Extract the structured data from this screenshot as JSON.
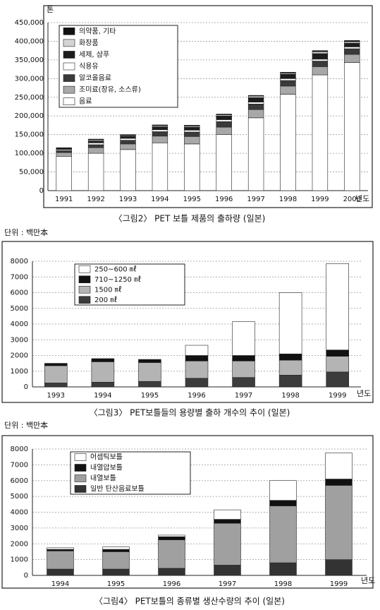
{
  "chart_data": [
    {
      "type": "bar",
      "stacked": true,
      "title": "〈그림2〉 PET 보틀 제품의 출하량 (일본)",
      "y_label": "톤",
      "x_label": "년도",
      "categories": [
        "1991",
        "1992",
        "1993",
        "1994",
        "1995",
        "1996",
        "1997",
        "1998",
        "1999",
        "2000"
      ],
      "series": [
        {
          "name": "의약품, 기타",
          "color": "#111111",
          "values": [
            1000,
            2000,
            2000,
            2000,
            2000,
            2000,
            2000,
            2000,
            3000,
            3000
          ]
        },
        {
          "name": "화장품",
          "color": "#d4d4d4",
          "values": [
            1000,
            3000,
            2000,
            3000,
            3000,
            3000,
            4000,
            3000,
            5000,
            4000
          ]
        },
        {
          "name": "세제, 샴푸",
          "color": "#1c1c1c",
          "values": [
            3000,
            5000,
            6000,
            8000,
            8000,
            10000,
            12000,
            12000,
            15000,
            10000
          ]
        },
        {
          "name": "식용유",
          "color": "#ffffff",
          "values": [
            3000,
            5000,
            5000,
            5000,
            5000,
            5000,
            5000,
            5000,
            5000,
            5000
          ]
        },
        {
          "name": "알코올음료",
          "color": "#3a3a3a",
          "values": [
            5000,
            8000,
            10000,
            12000,
            12000,
            15000,
            15000,
            15000,
            15000,
            15000
          ]
        },
        {
          "name": "조미료(장유, 소스류)",
          "color": "#a8a8a8",
          "values": [
            10000,
            15000,
            15000,
            18000,
            20000,
            20000,
            22000,
            22000,
            22000,
            22000
          ]
        },
        {
          "name": "음료",
          "color": "#ffffff",
          "values": [
            92000,
            100000,
            110000,
            128000,
            125000,
            150000,
            195000,
            258000,
            310000,
            343000
          ]
        }
      ],
      "ylim": [
        0,
        450000
      ],
      "yticks": [
        0,
        {
          "value": 50000,
          "label": "50,000"
        },
        {
          "value": 100000,
          "label": "100,000"
        },
        {
          "value": 150000,
          "label": "150,000"
        },
        {
          "value": 200000,
          "label": "200,000"
        },
        {
          "value": 250000,
          "label": "250,000"
        },
        {
          "value": 300000,
          "label": "300,000"
        },
        {
          "value": 350000,
          "label": "350,000"
        },
        {
          "value": 400000,
          "label": "400,000"
        },
        {
          "value": 450000,
          "label": "450,000"
        }
      ],
      "grid": true,
      "legend": "top-left"
    },
    {
      "type": "bar",
      "stacked": true,
      "title": "〈그림3〉 PET보틀들의 용량별 출하 개수의 추이 (일본)",
      "y_label": "단위 : 백만本",
      "x_label": "년도",
      "categories": [
        "1993",
        "1994",
        "1995",
        "1996",
        "1997",
        "1998",
        "1999"
      ],
      "series": [
        {
          "name": "250~600 ㎖",
          "color": "#ffffff",
          "values": [
            0,
            0,
            0,
            650,
            2150,
            3900,
            5500
          ]
        },
        {
          "name": "710~1250 ㎖",
          "color": "#111111",
          "values": [
            150,
            200,
            200,
            350,
            350,
            400,
            400
          ]
        },
        {
          "name": "1500 ㎖",
          "color": "#b4b4b4",
          "values": [
            1100,
            1300,
            1200,
            1100,
            1050,
            950,
            1000
          ]
        },
        {
          "name": "200 ㎖",
          "color": "#3c3c3c",
          "values": [
            250,
            300,
            350,
            550,
            600,
            750,
            950
          ]
        }
      ],
      "ylim": [
        0,
        8000
      ],
      "yticks": [
        0,
        1000,
        2000,
        3000,
        4000,
        5000,
        6000,
        7000,
        8000
      ],
      "grid": true,
      "legend": "top-left"
    },
    {
      "type": "bar",
      "stacked": true,
      "title": "〈그림4〉 PET보틀의 종류별 생산수량의 추이 (일본)",
      "y_label": "단위 : 백만本",
      "x_label": "년도",
      "categories": [
        "1994",
        "1995",
        "1996",
        "1997",
        "1998",
        "1999"
      ],
      "series": [
        {
          "name": "어셉틱보틀",
          "color": "#ffffff",
          "values": [
            100,
            150,
            100,
            600,
            1250,
            1650
          ]
        },
        {
          "name": "내열압보틀",
          "color": "#111111",
          "values": [
            100,
            150,
            200,
            250,
            350,
            400
          ]
        },
        {
          "name": "내열보틀",
          "color": "#a0a0a0",
          "values": [
            1150,
            1100,
            1800,
            2650,
            3600,
            4700
          ]
        },
        {
          "name": "일반 탄산음료보틀",
          "color": "#333333",
          "values": [
            400,
            400,
            450,
            650,
            800,
            1000
          ]
        }
      ],
      "ylim": [
        0,
        8000
      ],
      "yticks": [
        0,
        1000,
        2000,
        3000,
        4000,
        5000,
        6000,
        7000,
        8000
      ],
      "grid": true,
      "legend": "top-left"
    }
  ]
}
